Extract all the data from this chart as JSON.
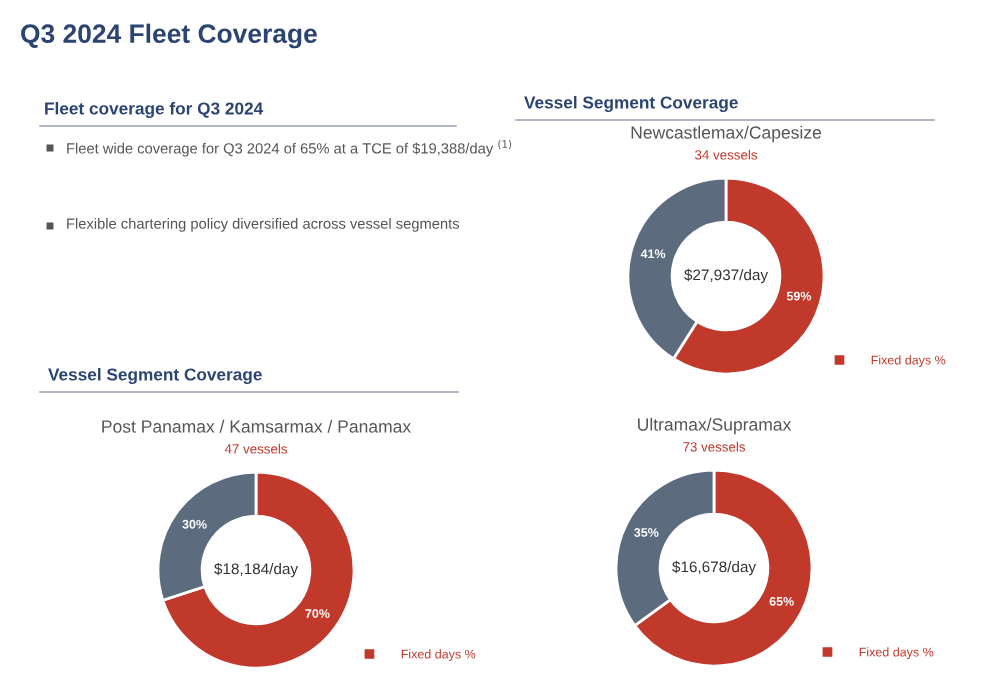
{
  "chart_data": [
    {
      "type": "other",
      "title": "Q3 2024 Fleet Coverage",
      "subtitle": "Fleet coverage for Q3 2024",
      "annotations": [
        "Fleet wide coverage for Q3 2024 of 65% at a TCE of $19,388/day $^{(1)}$",
        "Flexible chartering policy diversified across vessel segments",
        "Vessel Segment Coverage",
        "Vessel Segment Coverage"
      ]
    },
    {
      "type": "donut",
      "title": "Newcastlemax/Capesize",
      "subtitle": "34 vessels",
      "categories": [
        "Fixed days %",
        null
      ],
      "values": [
        59,
        41
      ],
      "colors": [
        "#c0392b",
        "#5d6b7f"
      ],
      "value_labels": [
        "59%",
        "41%"
      ],
      "annotations": [
        "$27,937/day"
      ],
      "legend": "bottom right"
    },
    {
      "type": "donut",
      "title": "Post Panamax / Kamsarmax / Panamax",
      "subtitle": "47 vessels",
      "categories": [
        "Fixed days %",
        null
      ],
      "values": [
        70,
        30
      ],
      "colors": [
        "#c0392b",
        "#5d6b7f"
      ],
      "value_labels": [
        "70%",
        "30%"
      ],
      "annotations": [
        "$18,184/day"
      ],
      "legend": "bottom right"
    },
    {
      "type": "donut",
      "title": "Ultramax/Supramax",
      "subtitle": "73 vessels",
      "categories": [
        "Fixed days %",
        null
      ],
      "values": [
        65,
        35
      ],
      "colors": [
        "#c0392b",
        "#5d6b7f"
      ],
      "value_labels": [
        "65%",
        "35%"
      ],
      "annotations": [
        "$16,678/day"
      ],
      "legend": "bottom right"
    }
  ]
}
